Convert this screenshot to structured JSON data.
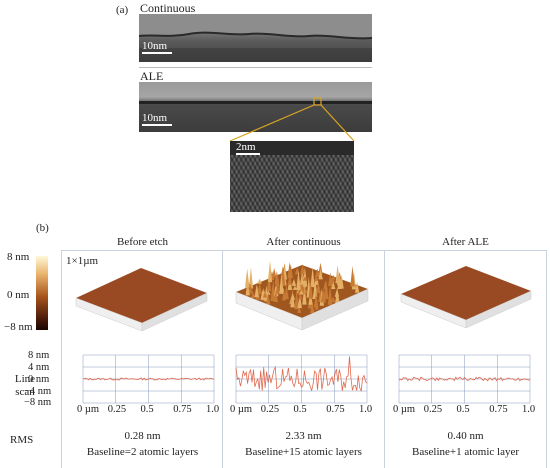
{
  "figure": {
    "panel_a": {
      "label": "(a)",
      "top_image": {
        "title": "Continuous",
        "scale_label": "10nm"
      },
      "bottom_image": {
        "title": "ALE",
        "scale_label": "10nm"
      },
      "zoom_image": {
        "scale_label": "2nm"
      }
    },
    "panel_b": {
      "label": "(b)",
      "colorbar_ticks": [
        "8 nm",
        "0 nm",
        "−8 nm"
      ],
      "size_label": "1×1µm",
      "line_scan_label": "Line\nscan",
      "line_scan_y_ticks": [
        "8 nm",
        "4 nm",
        "0 nm",
        "−4 nm",
        "−8 nm"
      ],
      "line_scan_x_ticks": [
        "0 µm",
        "0.25",
        "0.5",
        "0.75",
        "1.0"
      ],
      "rms_label": "RMS",
      "panels": [
        {
          "title": "Before etch",
          "rms": "0.28 nm",
          "baseline": "Baseline=2 atomic layers"
        },
        {
          "title": "After continuous",
          "rms": "2.33 nm",
          "baseline": "Baseline+15 atomic layers"
        },
        {
          "title": "After ALE",
          "rms": "0.40 nm",
          "baseline": "Baseline+1 atomic layer"
        }
      ]
    }
  },
  "colors": {
    "line": "#e06a50",
    "grid": "#6b7fa8",
    "zoom_box": "#d9a521",
    "afm_top": "#9a4a22",
    "afm_side": "#e9e9e9"
  }
}
